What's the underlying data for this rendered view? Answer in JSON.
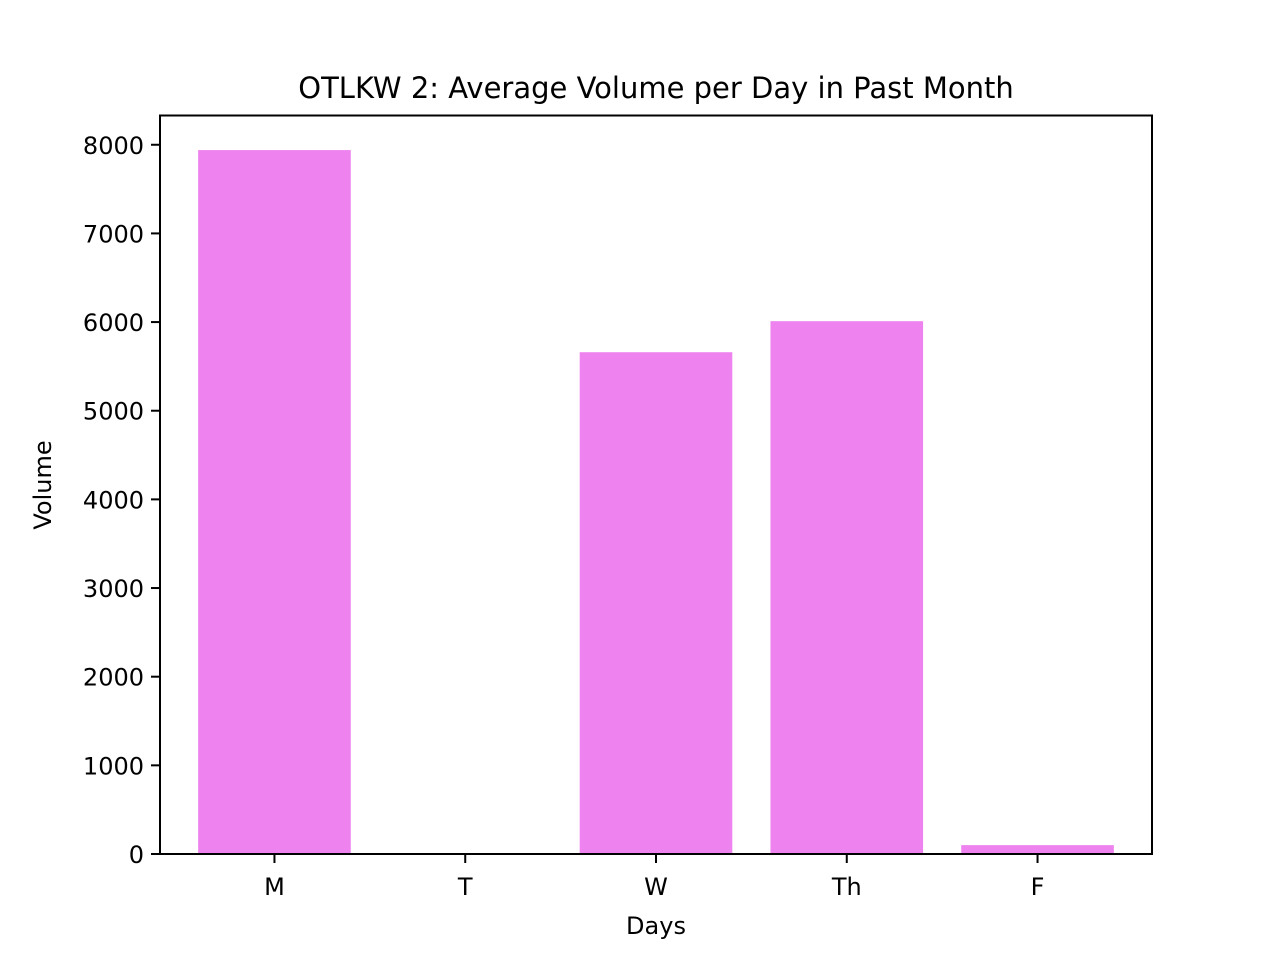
{
  "chart_data": {
    "type": "bar",
    "title": "OTLKW 2: Average Volume per Day in Past Month",
    "xlabel": "Days",
    "ylabel": "Volume",
    "categories": [
      "M",
      "T",
      "W",
      "Th",
      "F"
    ],
    "values": [
      7940,
      0,
      5660,
      6010,
      100
    ],
    "ylim": [
      0,
      8330
    ],
    "yticks": [
      0,
      1000,
      2000,
      3000,
      4000,
      5000,
      6000,
      7000,
      8000
    ],
    "bar_color": "#ee82ee",
    "grid": false,
    "legend": "none"
  }
}
